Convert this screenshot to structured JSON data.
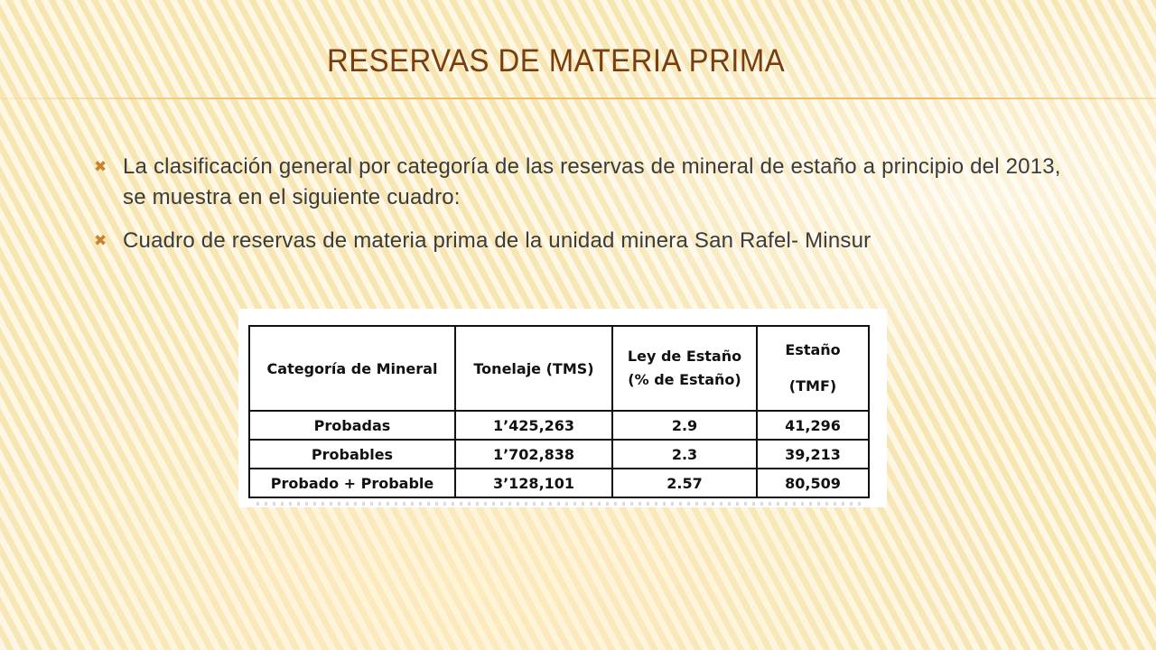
{
  "slide": {
    "title": "RESERVAS DE MATERIA PRIMA",
    "bullets": [
      "La clasificación general por categoría de las reservas de mineral de estaño a principio del 2013, se muestra en el siguiente cuadro:",
      "Cuadro de reservas de materia prima de la unidad minera San Rafel- Minsur"
    ],
    "bullet_icon": "x-mark-icon",
    "accent_color": "#c9832a",
    "title_color": "#7a3e0e"
  },
  "table": {
    "headers": {
      "categoria": "Categoría de Mineral",
      "tonelaje": "Tonelaje (TMS)",
      "ley_line1": "Ley de Estaño",
      "ley_line2": "(% de Estaño)",
      "estano_line1": "Estaño",
      "estano_line2": "(TMF)"
    },
    "rows": [
      {
        "categoria": "Probadas",
        "tonelaje": "1’425,263",
        "ley": "2.9",
        "estano": "41,296"
      },
      {
        "categoria": "Probables",
        "tonelaje": "1’702,838",
        "ley": "2.3",
        "estano": "39,213"
      },
      {
        "categoria": "Probado + Probable",
        "tonelaje": "3’128,101",
        "ley": "2.57",
        "estano": "80,509"
      }
    ]
  }
}
